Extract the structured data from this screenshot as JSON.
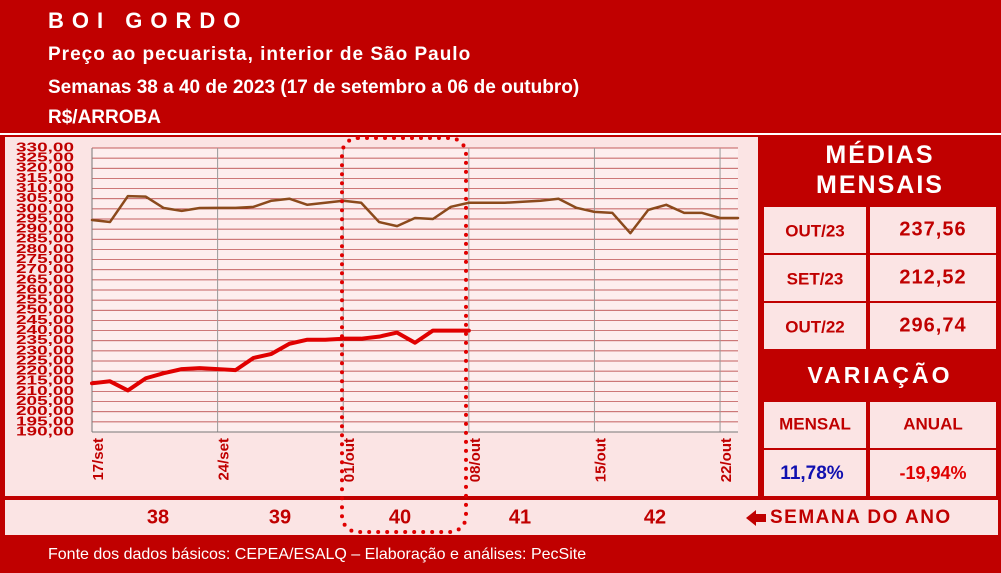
{
  "chart_data": {
    "type": "line",
    "title": "BOI GORDO",
    "subtitle": [
      "Preço ao pecuarista, interior de São Paulo",
      "Semanas 38 a 40 de 2023 (17 de setembro a 06 de outubro)"
    ],
    "ylabel": "R$/ARROBA",
    "categories": [
      "17/set",
      null,
      null,
      null,
      null,
      null,
      null,
      "24/set",
      null,
      null,
      null,
      null,
      null,
      null,
      "01/out",
      null,
      null,
      null,
      null,
      null,
      null,
      "08/out",
      null,
      null,
      null,
      null,
      null,
      null,
      "15/out",
      null,
      null,
      null,
      null,
      null,
      null,
      "22/out",
      null
    ],
    "series": [
      {
        "color": "#8b4a1c",
        "values": [
          294.5,
          293.5,
          306.3,
          306,
          300.4,
          299,
          300.4,
          300.5,
          300.5,
          301,
          304,
          305,
          302,
          303,
          304,
          303,
          293.5,
          291.5,
          295.5,
          295,
          301,
          303,
          303,
          303,
          303.5,
          304,
          305,
          300.5,
          298.5,
          298,
          288,
          299.5,
          302,
          298,
          298,
          295.5,
          295.5
        ]
      },
      {
        "color": "#e00000",
        "values": [
          214,
          215,
          210.5,
          216.5,
          219,
          221,
          221.5,
          221,
          220.5,
          226.5,
          228.5,
          233.5,
          235.5,
          235.5,
          236,
          236,
          237,
          239,
          234,
          240,
          240,
          240,
          null,
          null,
          null,
          null,
          null,
          null,
          null,
          null,
          null,
          null,
          null,
          null,
          null,
          null,
          null
        ]
      }
    ],
    "ylim": [
      190,
      330
    ],
    "yticks": [
      {
        "value": 190,
        "label": "190,00"
      },
      {
        "value": 195,
        "label": "195,00"
      },
      {
        "value": 200,
        "label": "200,00"
      },
      {
        "value": 205,
        "label": "205,00"
      },
      {
        "value": 210,
        "label": "210,00"
      },
      {
        "value": 215,
        "label": "215,00"
      },
      {
        "value": 220,
        "label": "220,00"
      },
      {
        "value": 225,
        "label": "225,00"
      },
      {
        "value": 230,
        "label": "230,00"
      },
      {
        "value": 235,
        "label": "235,00"
      },
      {
        "value": 240,
        "label": "240,00"
      },
      {
        "value": 245,
        "label": "245,00"
      },
      {
        "value": 250,
        "label": "250,00"
      },
      {
        "value": 255,
        "label": "255,00"
      },
      {
        "value": 260,
        "label": "260,00"
      },
      {
        "value": 265,
        "label": "265,00"
      },
      {
        "value": 270,
        "label": "270,00"
      },
      {
        "value": 275,
        "label": "275,00"
      },
      {
        "value": 280,
        "label": "280,00"
      },
      {
        "value": 285,
        "label": "285,00"
      },
      {
        "value": 290,
        "label": "290,00"
      },
      {
        "value": 295,
        "label": "295,00"
      },
      {
        "value": 300,
        "label": "300,00"
      },
      {
        "value": 305,
        "label": "305,00"
      },
      {
        "value": 310,
        "label": "310,00"
      },
      {
        "value": 315,
        "label": "315,00"
      },
      {
        "value": 320,
        "label": "320,00"
      },
      {
        "value": 325,
        "label": "325,00"
      },
      {
        "value": 330,
        "label": "330,00"
      }
    ],
    "grid": true
  },
  "panel": {
    "title": "MÉDIAS MENSAIS",
    "rows": [
      [
        "OUT/23",
        "237,56"
      ],
      [
        "SET/23",
        "212,52"
      ],
      [
        "OUT/22",
        "296,74"
      ]
    ],
    "variation_title": "VARIAÇÃO",
    "variation_headers": [
      "MENSAL",
      "ANUAL"
    ],
    "variation_values": [
      "11,78%",
      "-19,94%"
    ]
  },
  "footer": {
    "weeks": [
      "38",
      "39",
      "40",
      "41",
      "42"
    ],
    "week_label": "SEMANA DO ANO",
    "source": "Fonte dos dados básicos: CEPEA/ESALQ – Elaboração e análises: PecSite"
  }
}
